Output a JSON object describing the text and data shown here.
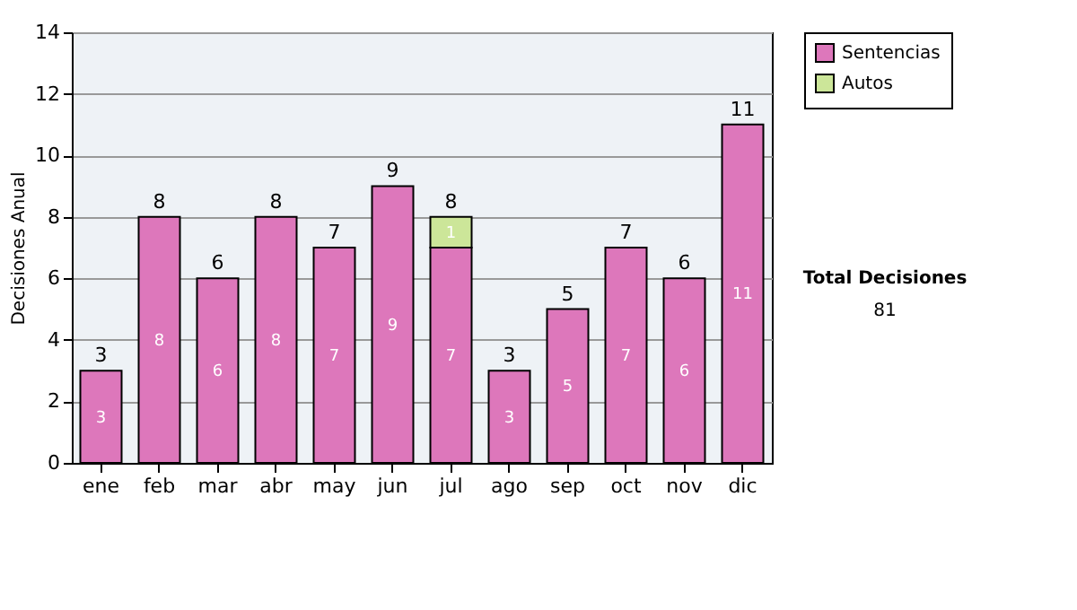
{
  "chart_data": {
    "type": "bar",
    "stacked": true,
    "ylabel": "Decisiones Anual",
    "categories": [
      "ene",
      "feb",
      "mar",
      "abr",
      "may",
      "jun",
      "jul",
      "ago",
      "sep",
      "oct",
      "nov",
      "dic"
    ],
    "series": [
      {
        "name": "Sentencias",
        "color": "#dd77bb",
        "values": [
          3,
          8,
          6,
          8,
          7,
          9,
          7,
          3,
          5,
          7,
          6,
          11
        ],
        "value_labels": [
          "3",
          "8",
          "6",
          "8",
          "7",
          "9",
          "7",
          "3",
          "5",
          "7",
          "6",
          "11"
        ]
      },
      {
        "name": "Autos",
        "color": "#cce699",
        "values": [
          0,
          0,
          0,
          0,
          0,
          0,
          1,
          0,
          0,
          0,
          0,
          0
        ],
        "value_labels": [
          null,
          null,
          null,
          null,
          null,
          null,
          "1",
          null,
          null,
          null,
          null,
          null
        ]
      }
    ],
    "totals": [
      "3",
      "8",
      "6",
      "8",
      "7",
      "9",
      "8",
      "3",
      "5",
      "7",
      "6",
      "11"
    ],
    "ylim": [
      0,
      14
    ],
    "yticks": [
      0,
      2,
      4,
      6,
      8,
      10,
      12,
      14
    ],
    "grid": "y",
    "legend": "right",
    "annotations": [
      "Total Decisiones",
      "81"
    ]
  }
}
